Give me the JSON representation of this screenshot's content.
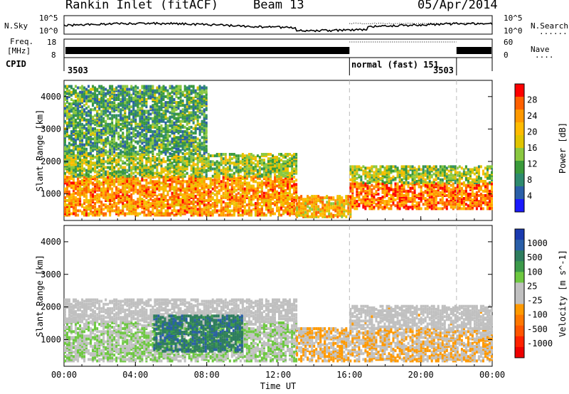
{
  "header": {
    "station": "Rankin Inlet (fitACF)",
    "beam": "Beam 13",
    "date": "05/Apr/2014"
  },
  "top_panels": {
    "nsky_label": "N.Sky",
    "nsearch_label": "N.Search",
    "nsearch_line": "·······",
    "noise_ticks_left": [
      "10^5",
      "10^0"
    ],
    "noise_ticks_right": [
      "10^5",
      "10^0"
    ],
    "freq_label_1": "Freq.",
    "freq_label_2": "[MHz]",
    "freq_ticks": [
      "18",
      "8"
    ],
    "nave_label": "Nave",
    "nave_line": "····",
    "nave_ticks": [
      "60",
      "0"
    ],
    "cpid_label": "CPID",
    "cpid_segments": [
      {
        "text": "3503",
        "start_hour": 0
      },
      {
        "text": "normal (fast) 151",
        "start_hour": 16
      },
      {
        "text": "3503",
        "start_hour": 22
      }
    ]
  },
  "power_panel": {
    "ylabel": "Slant Range [km]",
    "cbar_label": "Power [dB]",
    "cbar_ticks": [
      "28",
      "24",
      "20",
      "16",
      "12",
      "8",
      "4"
    ],
    "cbar_colors": [
      "#ff0000",
      "#ff6000",
      "#ff9900",
      "#ffbb00",
      "#e0c400",
      "#8ac840",
      "#3a9a3a",
      "#2e8a6e",
      "#2a5fa8",
      "#1a1aff"
    ]
  },
  "velocity_panel": {
    "ylabel": "Slant Range [km]",
    "cbar_label": "Velocity [m s^-1]",
    "cbar_ticks": [
      "1000",
      "500",
      "100",
      "25",
      "-25",
      "-100",
      "-500",
      "-1000"
    ],
    "cbar_colors": [
      "#1a3ab0",
      "#2a5fa8",
      "#2e7d5e",
      "#3c9a4a",
      "#6dc840",
      "#c0c0c0",
      "#c0c0c0",
      "#ff9900",
      "#ff7700",
      "#ff5500",
      "#ff2200",
      "#ee0000"
    ]
  },
  "xaxis": {
    "label": "Time UT",
    "ticks": [
      "00:00",
      "04:00",
      "08:00",
      "12:00",
      "16:00",
      "20:00",
      "00:00"
    ]
  },
  "chart_data": {
    "type": "heatmap",
    "x_range_hours": [
      0,
      24
    ],
    "y_range_km": [
      180,
      4500
    ],
    "y_ticks": [
      "4000",
      "3000",
      "2000",
      "1000"
    ],
    "mode_change_hours": [
      16,
      22
    ],
    "power_db": {
      "range": [
        0,
        30
      ],
      "bands": [
        {
          "t_start": 0,
          "t_end": 13,
          "r_min": 300,
          "r_max": 1500,
          "value": 22
        },
        {
          "t_start": 0,
          "t_end": 13,
          "r_min": 1500,
          "r_max": 2200,
          "value": 14
        },
        {
          "t_start": 0,
          "t_end": 8,
          "r_min": 2200,
          "r_max": 4300,
          "value": 10
        },
        {
          "t_start": 13,
          "t_end": 16,
          "r_min": 250,
          "r_max": 900,
          "value": 20
        },
        {
          "t_start": 16,
          "t_end": 24,
          "r_min": 500,
          "r_max": 1300,
          "value": 24
        },
        {
          "t_start": 16,
          "t_end": 24,
          "r_min": 1300,
          "r_max": 1800,
          "value": 14
        }
      ]
    },
    "velocity_ms": {
      "range": [
        -1000,
        1000
      ],
      "bands": [
        {
          "t_start": 0,
          "t_end": 13,
          "r_min": 300,
          "r_max": 1500,
          "value": 150
        },
        {
          "t_start": 0,
          "t_end": 13,
          "r_min": 1500,
          "r_max": 2200,
          "value": 0
        },
        {
          "t_start": 5,
          "t_end": 10,
          "r_min": 600,
          "r_max": 1700,
          "value": 600
        },
        {
          "t_start": 13,
          "t_end": 24,
          "r_min": 300,
          "r_max": 1300,
          "value": -150
        },
        {
          "t_start": 16,
          "t_end": 24,
          "r_min": 1300,
          "r_max": 2000,
          "value": -40
        }
      ]
    }
  }
}
